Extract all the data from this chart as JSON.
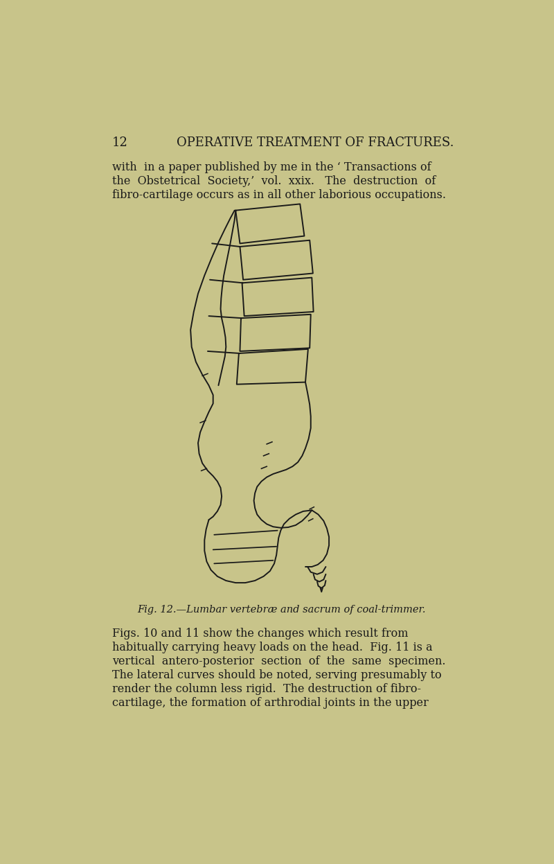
{
  "background_color": "#c8c48a",
  "page_number": "12",
  "header_text": "OPERATIVE TREATMENT OF FRACTURES.",
  "body_text_top": [
    "with  in a paper published by me in the ‘ Transactions of",
    "the  Obstetrical  Society,’  vol.  xxix.   The  destruction  of",
    "fibro-cartilage occurs as in all other laborious occupations."
  ],
  "caption_text": "Fig. 12.—Lumbar vertebræ and sacrum of coal-trimmer.",
  "body_text_bottom": [
    "Figs. 10 and 11 show the changes which result from",
    "habitually carrying heavy loads on the head.  Fig. 11 is a",
    "vertical  antero-posterior  section  of  the  same  specimen.",
    "The lateral curves should be noted, serving presumably to",
    "render the column less rigid.  The destruction of fibro-",
    "cartilage, the formation of arthrodial joints in the upper"
  ],
  "line_color": "#1a1a1a",
  "text_color": "#1a1a1a"
}
